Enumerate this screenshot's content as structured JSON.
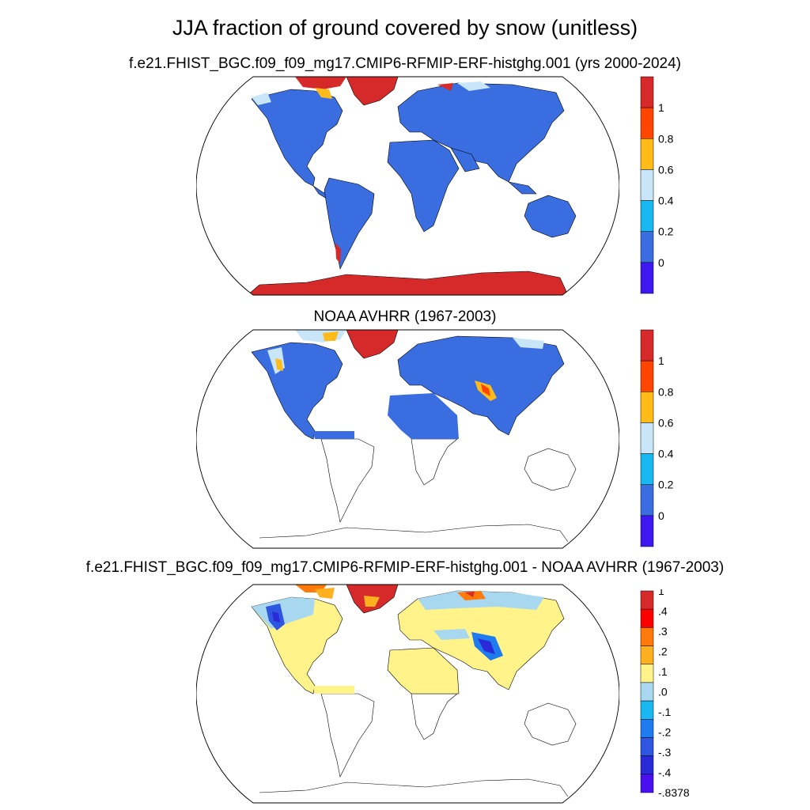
{
  "figure": {
    "title": "JJA fraction of ground covered by snow (unitless)"
  },
  "colors": {
    "land_model": "#3a6ee0",
    "snow_high": "#d62a2a",
    "ocean": "#ffffff",
    "coast": "#000000"
  },
  "panels": [
    {
      "title": "f.e21.FHIST_BGC.f09_f09_mg17.CMIP6-RFMIP-ERF-histghg.001 (yrs 2000-2024)",
      "colorbar": {
        "colors": [
          "#d7282a",
          "#ff4500",
          "#ffbb19",
          "#c8e6f8",
          "#19b8f0",
          "#3a6ee0",
          "#3d18f0"
        ],
        "labels": [
          "1",
          "0.8",
          "0.6",
          "0.4",
          "0.2",
          "0"
        ]
      }
    },
    {
      "title": "NOAA AVHRR (1967-2003)",
      "colorbar": {
        "colors": [
          "#d7282a",
          "#ff4500",
          "#ffbb19",
          "#c8e6f8",
          "#19b8f0",
          "#3a6ee0",
          "#3d18f0"
        ],
        "labels": [
          "1",
          "0.8",
          "0.6",
          "0.4",
          "0.2",
          "0"
        ]
      }
    },
    {
      "title": "f.e21.FHIST_BGC.f09_f09_mg17.CMIP6-RFMIP-ERF-histghg.001 - NOAA AVHRR (1967-2003)",
      "colorbar": {
        "colors": [
          "#d7282a",
          "#ff0000",
          "#ff7a0a",
          "#ffb01e",
          "#fff38a",
          "#a8d8f0",
          "#19b8f0",
          "#1e7cf0",
          "#2e56e0",
          "#2a2ad8",
          "#4a10f0"
        ],
        "labels": [
          "1",
          ".4",
          ".3",
          ".2",
          ".1",
          ".0",
          "-.1",
          "-.2",
          "-.3",
          "-.4",
          "-.8378"
        ]
      }
    }
  ]
}
